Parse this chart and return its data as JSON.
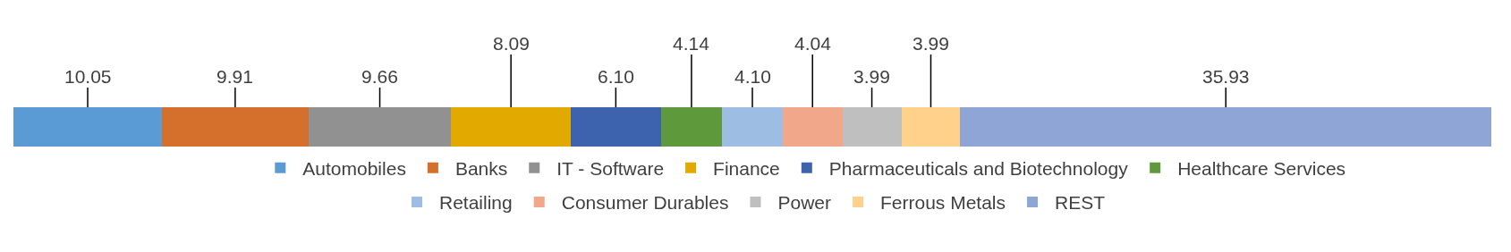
{
  "chart_data": {
    "type": "bar",
    "orientation": "horizontal",
    "stacked": true,
    "legend": "bottom",
    "tick_labels": false,
    "categories": [
      null
    ],
    "series": [
      {
        "name": "Automobiles",
        "color": "#5b9bd5",
        "values": [
          10.05
        ],
        "value_labels": [
          "10.05"
        ]
      },
      {
        "name": "Banks",
        "color": "#d4702b",
        "values": [
          9.91
        ],
        "value_labels": [
          "9.91"
        ]
      },
      {
        "name": "IT - Software",
        "color": "#919191",
        "values": [
          9.66
        ],
        "value_labels": [
          "9.66"
        ]
      },
      {
        "name": "Finance",
        "color": "#e2aa00",
        "values": [
          8.09
        ],
        "value_labels": [
          "8.09"
        ]
      },
      {
        "name": "Pharmaceuticals and Biotechnology",
        "color": "#3d63ae",
        "values": [
          6.1
        ],
        "value_labels": [
          "6.10"
        ]
      },
      {
        "name": "Healthcare Services",
        "color": "#5e9a3c",
        "values": [
          4.14
        ],
        "value_labels": [
          "4.14"
        ]
      },
      {
        "name": "Retailing",
        "color": "#9dbde3",
        "values": [
          4.1
        ],
        "value_labels": [
          "4.10"
        ]
      },
      {
        "name": "Consumer Durables",
        "color": "#f1a78a",
        "values": [
          4.04
        ],
        "value_labels": [
          "4.04"
        ]
      },
      {
        "name": "Power",
        "color": "#bfbfbf",
        "values": [
          3.99
        ],
        "value_labels": [
          "3.99"
        ]
      },
      {
        "name": "Ferrous Metals",
        "color": "#ffd18a",
        "values": [
          3.99
        ],
        "value_labels": [
          "3.99"
        ]
      },
      {
        "name": "REST",
        "color": "#8fa5d6",
        "values": [
          35.93
        ],
        "value_labels": [
          "35.93"
        ]
      }
    ]
  }
}
